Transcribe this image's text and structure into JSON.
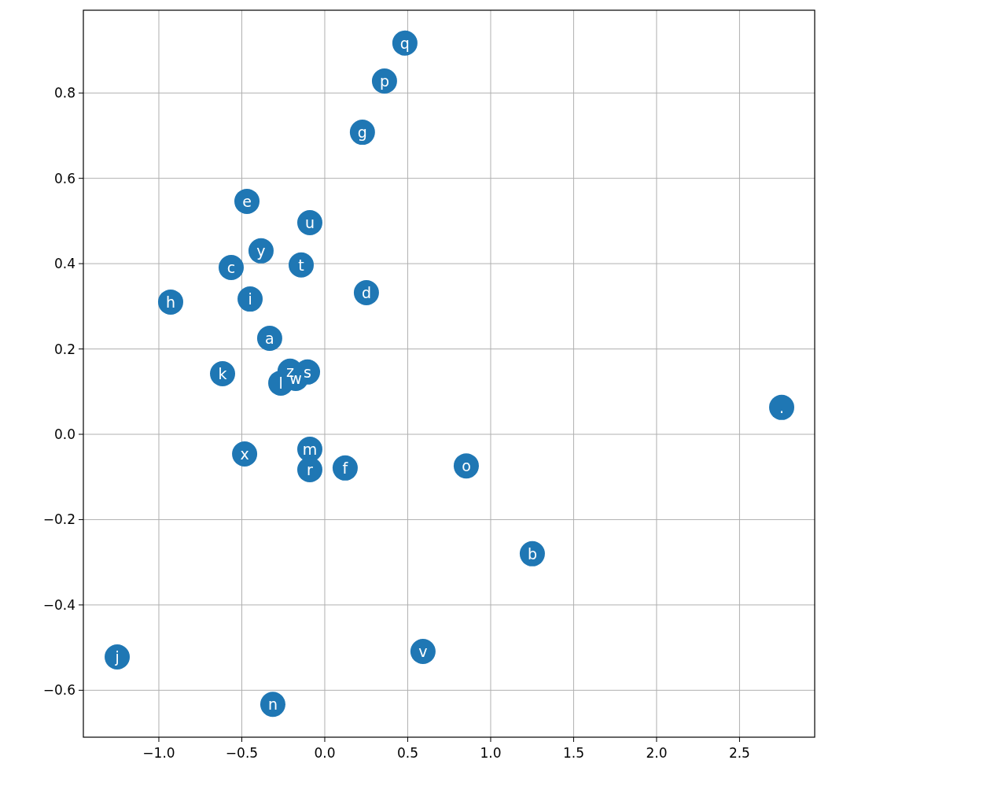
{
  "chart_data": {
    "type": "scatter",
    "marker": "circle",
    "grid": true,
    "xlim": [
      -1.455,
      2.953
    ],
    "ylim": [
      -0.71,
      0.994
    ],
    "xticks": [
      {
        "value": -1,
        "label": "−1.0"
      },
      {
        "value": -0.5,
        "label": "−0.5"
      },
      {
        "value": 0,
        "label": "0.0"
      },
      {
        "value": 0.5,
        "label": "0.5"
      },
      {
        "value": 1,
        "label": "1.0"
      },
      {
        "value": 1.5,
        "label": "1.5"
      },
      {
        "value": 2,
        "label": "2.0"
      },
      {
        "value": 2.5,
        "label": "2.5"
      }
    ],
    "yticks": [
      {
        "value": -0.6,
        "label": "−0.6"
      },
      {
        "value": -0.4,
        "label": "−0.4"
      },
      {
        "value": -0.2,
        "label": "−0.2"
      },
      {
        "value": 0,
        "label": "0.0"
      },
      {
        "value": 0.2,
        "label": "0.2"
      },
      {
        "value": 0.4,
        "label": "0.4"
      },
      {
        "value": 0.6,
        "label": "0.6"
      },
      {
        "value": 0.8,
        "label": "0.8"
      }
    ],
    "series": [
      {
        "color": "#1f77b4",
        "x": [
          0.483,
          0.36,
          0.227,
          -0.469,
          -0.09,
          -0.384,
          -0.564,
          -0.142,
          0.251,
          -0.929,
          -0.45,
          -0.332,
          -0.616,
          -0.209,
          -0.104,
          -0.175,
          -0.265,
          2.754,
          -0.483,
          -0.09,
          -0.09,
          0.123,
          0.853,
          1.251,
          0.592,
          -1.251,
          -0.313
        ],
        "values": [
          0.917,
          0.828,
          0.708,
          0.546,
          0.496,
          0.43,
          0.391,
          0.397,
          0.332,
          0.31,
          0.317,
          0.225,
          0.142,
          0.148,
          0.146,
          0.131,
          0.12,
          0.063,
          -0.046,
          -0.035,
          -0.083,
          -0.079,
          -0.074,
          -0.28,
          -0.509,
          -0.522,
          -0.633
        ],
        "value_labels": [
          "q",
          "p",
          "g",
          "e",
          "u",
          "y",
          "c",
          "t",
          "d",
          "h",
          "i",
          "a",
          "k",
          "z",
          "s",
          "w",
          "l",
          ".",
          "x",
          "m",
          "r",
          "f",
          "o",
          "b",
          "v",
          "j",
          "n"
        ]
      }
    ]
  }
}
